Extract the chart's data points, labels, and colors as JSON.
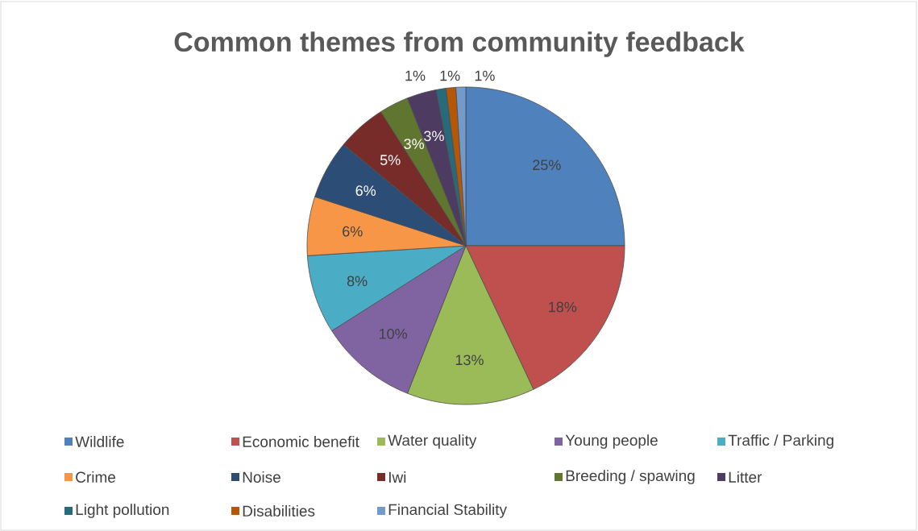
{
  "chart_data": {
    "type": "pie",
    "title": "Common themes from community feedback",
    "categories": [
      "Wildlife",
      "Economic benefit",
      "Water quality",
      "Young people",
      "Traffic / Parking",
      "Crime",
      "Noise",
      "Iwi",
      "Breeding / spawing",
      "Litter",
      "Light pollution",
      "Disabilities",
      "Financial Stability"
    ],
    "values": [
      25,
      18,
      13,
      10,
      8,
      6,
      6,
      5,
      3,
      3,
      1,
      1,
      1
    ],
    "value_labels": [
      "25%",
      "18%",
      "13%",
      "10%",
      "8%",
      "6%",
      "6%",
      "5%",
      "3%",
      "3%",
      "1%",
      "1%",
      "1%"
    ],
    "colors": [
      "#4f81bd",
      "#c0504d",
      "#9bbb59",
      "#8064a2",
      "#4bacc6",
      "#f79646",
      "#2c4d75",
      "#772c2a",
      "#5f7530",
      "#4d3b62",
      "#276a7c",
      "#b65708",
      "#729aca"
    ],
    "legend": "bottom"
  }
}
